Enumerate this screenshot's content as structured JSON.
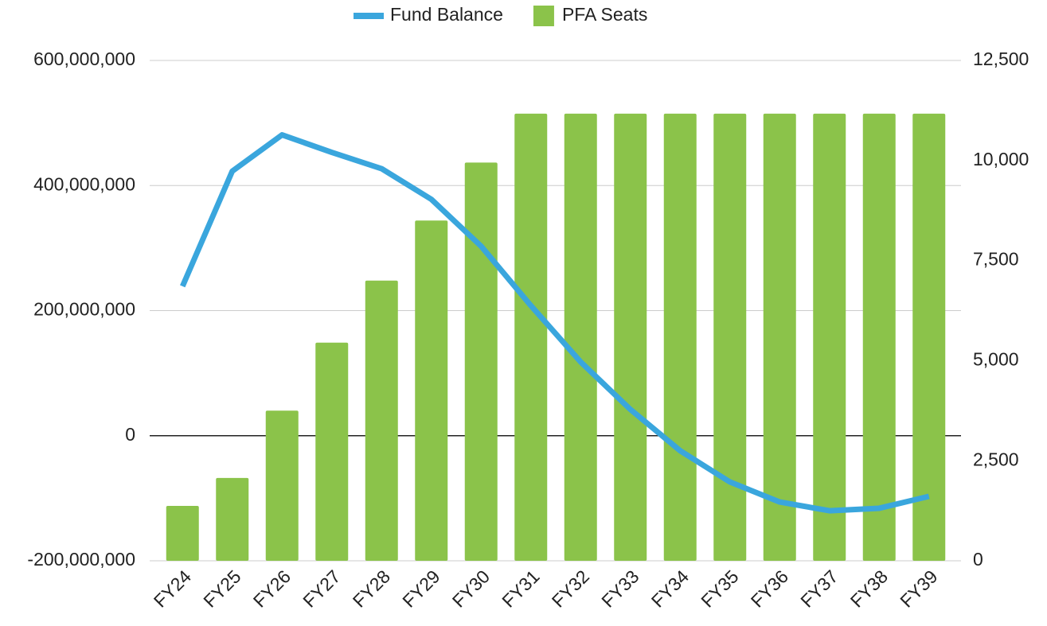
{
  "chart_data": {
    "type": "bar_line",
    "categories": [
      "FY24",
      "FY25",
      "FY26",
      "FY27",
      "FY28",
      "FY29",
      "FY30",
      "FY31",
      "FY32",
      "FY33",
      "FY34",
      "FY35",
      "FY36",
      "FY37",
      "FY38",
      "FY39"
    ],
    "series": [
      {
        "name": "Fund Balance",
        "type": "line",
        "color": "#3aa6dd",
        "axis": "y",
        "values": [
          239000000,
          423000000,
          481000000,
          453000000,
          427000000,
          378000000,
          303000000,
          208000000,
          118000000,
          42000000,
          -24000000,
          -74000000,
          -106000000,
          -120000000,
          -116000000,
          -97000000
        ]
      },
      {
        "name": "PFA Seats",
        "type": "bar",
        "color": "#8bc34a",
        "axis": "y2",
        "values": [
          1370,
          2070,
          3750,
          5450,
          7000,
          8500,
          9950,
          11170,
          11170,
          11170,
          11170,
          11170,
          11170,
          11170,
          11170,
          11170
        ]
      }
    ],
    "ylim": [
      -200000000,
      600000000
    ],
    "yticks": [
      {
        "value": -200000000,
        "label": "-200,000,000"
      },
      0,
      {
        "value": 200000000,
        "label": "200,000,000"
      },
      {
        "value": 400000000,
        "label": "400,000,000"
      },
      {
        "value": 600000000,
        "label": "600,000,000"
      }
    ],
    "y2lim": [
      0,
      12500
    ],
    "y2ticks": [
      0,
      {
        "value": 2500,
        "label": "2,500"
      },
      {
        "value": 5000,
        "label": "5,000"
      },
      {
        "value": 7500,
        "label": "7,500"
      },
      {
        "value": 10000,
        "label": "10,000"
      },
      {
        "value": 12500,
        "label": "12,500"
      }
    ],
    "grid": true,
    "legend": "top"
  }
}
